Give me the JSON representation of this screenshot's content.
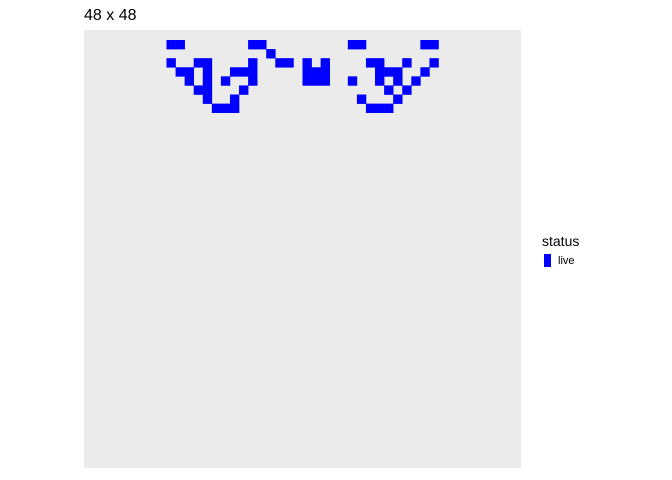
{
  "chart_data": {
    "type": "heatmap",
    "title": "48 x 48",
    "xlim": [
      1,
      48
    ],
    "ylim": [
      1,
      48
    ],
    "grid": false,
    "xlabel": "",
    "ylabel": "",
    "panel_color": "#EBEBEB",
    "live_color": "#0000FF",
    "legend": {
      "title": "status",
      "position": "right",
      "entries": [
        {
          "label": "live",
          "color": "#0000FF"
        }
      ]
    },
    "live_cells": [
      [
        10,
        2
      ],
      [
        11,
        2
      ],
      [
        19,
        2
      ],
      [
        20,
        2
      ],
      [
        30,
        2
      ],
      [
        31,
        2
      ],
      [
        38,
        2
      ],
      [
        39,
        2
      ],
      [
        21,
        3
      ],
      [
        10,
        4
      ],
      [
        13,
        4
      ],
      [
        14,
        4
      ],
      [
        19,
        4
      ],
      [
        22,
        4
      ],
      [
        23,
        4
      ],
      [
        25,
        4
      ],
      [
        27,
        4
      ],
      [
        32,
        4
      ],
      [
        33,
        4
      ],
      [
        36,
        4
      ],
      [
        39,
        4
      ],
      [
        11,
        5
      ],
      [
        12,
        5
      ],
      [
        14,
        5
      ],
      [
        17,
        5
      ],
      [
        18,
        5
      ],
      [
        19,
        5
      ],
      [
        25,
        5
      ],
      [
        26,
        5
      ],
      [
        27,
        5
      ],
      [
        33,
        5
      ],
      [
        34,
        5
      ],
      [
        35,
        5
      ],
      [
        38,
        5
      ],
      [
        12,
        6
      ],
      [
        14,
        6
      ],
      [
        16,
        6
      ],
      [
        19,
        6
      ],
      [
        25,
        6
      ],
      [
        26,
        6
      ],
      [
        27,
        6
      ],
      [
        30,
        6
      ],
      [
        33,
        6
      ],
      [
        35,
        6
      ],
      [
        37,
        6
      ],
      [
        13,
        7
      ],
      [
        14,
        7
      ],
      [
        18,
        7
      ],
      [
        34,
        7
      ],
      [
        36,
        7
      ],
      [
        14,
        8
      ],
      [
        17,
        8
      ],
      [
        31,
        8
      ],
      [
        35,
        8
      ],
      [
        15,
        9
      ],
      [
        16,
        9
      ],
      [
        17,
        9
      ],
      [
        32,
        9
      ],
      [
        33,
        9
      ],
      [
        34,
        9
      ]
    ]
  }
}
